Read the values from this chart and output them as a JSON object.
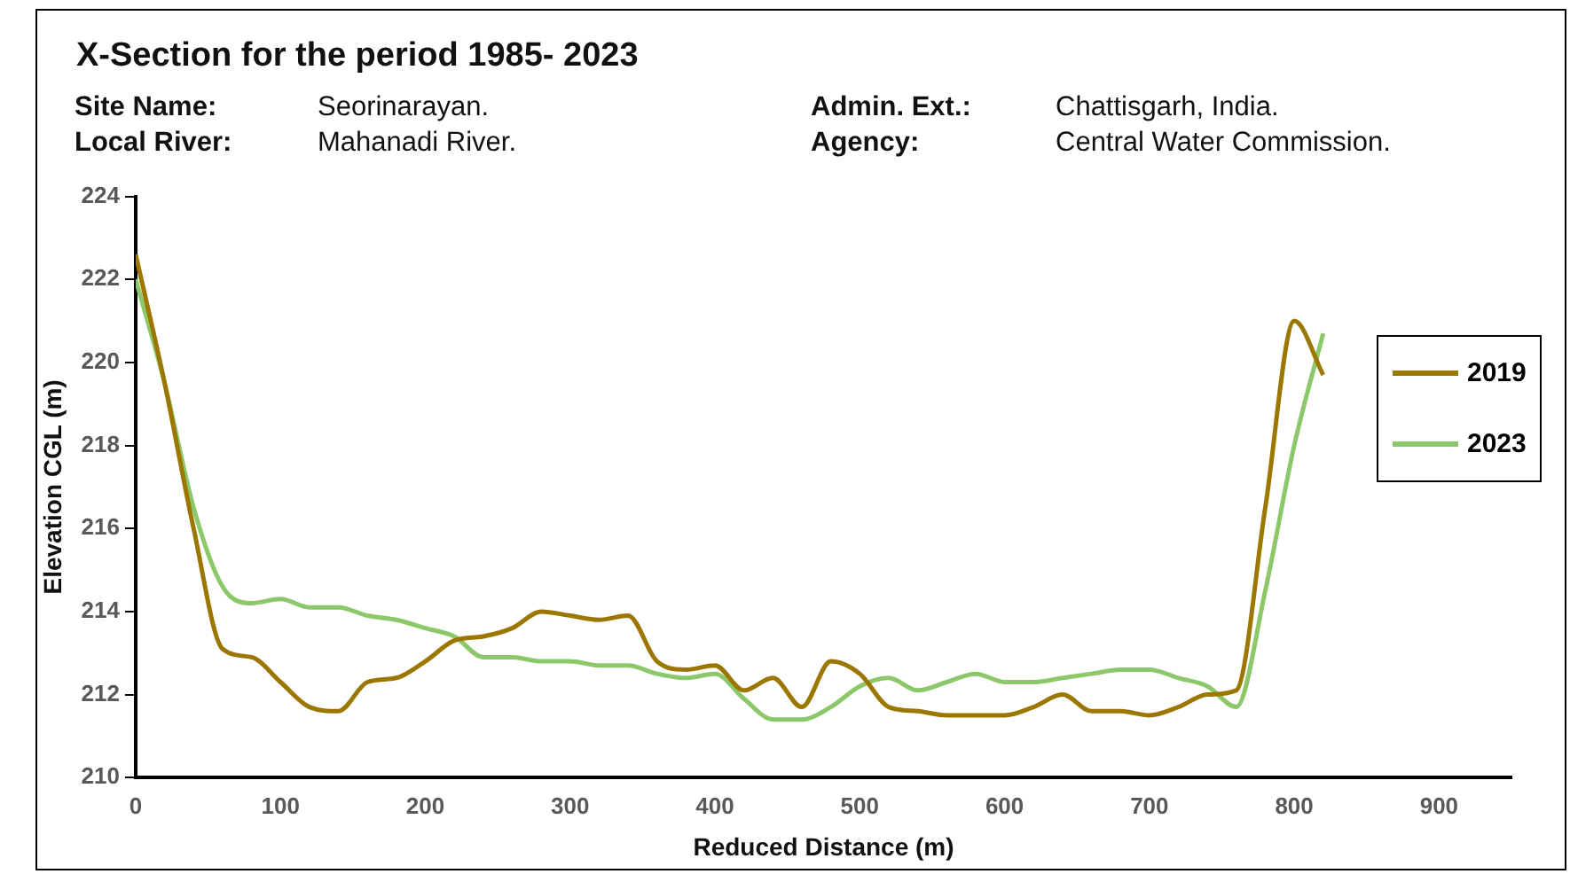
{
  "chart_data": {
    "type": "line",
    "title": "X-Section for the period 1985- 2023",
    "annotations": [
      "Site Name:",
      "Seorinarayan.",
      "Admin. Ext.:",
      "Chattisgarh, India.",
      "Local River:",
      "Mahanadi River.",
      "Agency:",
      "Central Water Commission."
    ],
    "xlabel": "Reduced Distance (m)",
    "ylabel": "Elevation CGL (m)",
    "x": [
      0,
      20,
      40,
      60,
      80,
      100,
      120,
      140,
      160,
      180,
      200,
      220,
      240,
      260,
      280,
      300,
      320,
      340,
      360,
      380,
      400,
      420,
      440,
      460,
      480,
      500,
      520,
      540,
      560,
      580,
      600,
      620,
      640,
      660,
      680,
      700,
      720,
      740,
      760,
      780,
      800,
      820
    ],
    "series": [
      {
        "name": "2019",
        "color": "#9c7700",
        "values": [
          222.6,
          219.5,
          216,
          213.1,
          212.9,
          212.3,
          211.7,
          211.6,
          212.3,
          212.4,
          212.8,
          213.3,
          213.4,
          213.6,
          214,
          213.9,
          213.8,
          213.9,
          212.8,
          212.6,
          212.7,
          212.1,
          212.4,
          211.7,
          212.8,
          212.5,
          211.7,
          211.6,
          211.5,
          211.5,
          211.5,
          211.7,
          212,
          211.6,
          211.6,
          211.5,
          211.7,
          212,
          212.1,
          216.5,
          221,
          219.7
        ]
      },
      {
        "name": "2023",
        "color": "#8cc86a",
        "values": [
          222,
          219.5,
          216.5,
          214.6,
          214.2,
          214.3,
          214.1,
          214.1,
          213.9,
          213.8,
          213.6,
          213.4,
          212.9,
          212.9,
          212.8,
          212.8,
          212.7,
          212.7,
          212.5,
          212.4,
          212.5,
          211.9,
          211.4,
          211.4,
          211.7,
          212.2,
          212.4,
          212.1,
          212.3,
          212.5,
          212.3,
          212.3,
          212.4,
          212.5,
          212.6,
          212.6,
          212.4,
          212.2,
          211.7,
          214.5,
          218,
          220.7
        ]
      }
    ],
    "xlim": [
      0,
      950
    ],
    "xticks": [
      0,
      100,
      200,
      300,
      400,
      500,
      600,
      700,
      800,
      900
    ],
    "ylim": [
      210,
      224
    ],
    "yticks": [
      210,
      212,
      214,
      216,
      218,
      220,
      222,
      224
    ],
    "grid": false,
    "legend": "right",
    "line_style": "solid",
    "marker": "none"
  }
}
